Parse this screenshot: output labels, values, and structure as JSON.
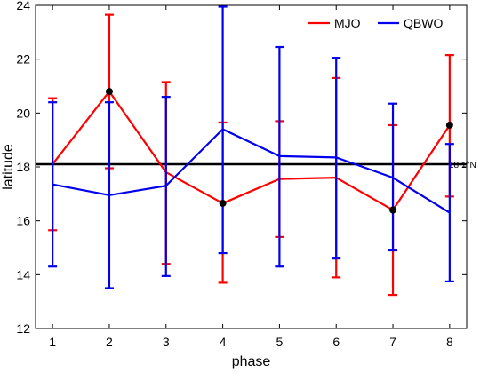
{
  "chart_data": {
    "type": "line",
    "title": "",
    "xlabel": "phase",
    "ylabel": "latitude",
    "x": [
      1,
      2,
      3,
      4,
      5,
      6,
      7,
      8
    ],
    "xlim": [
      0.7,
      8.3
    ],
    "ylim": [
      12,
      24
    ],
    "x_ticks": [
      "1",
      "2",
      "3",
      "4",
      "5",
      "6",
      "7",
      "8"
    ],
    "y_ticks": [
      "12",
      "14",
      "16",
      "18",
      "20",
      "22",
      "24"
    ],
    "grid": false,
    "legend_position": "top-right",
    "reference_line": {
      "y": 18.1,
      "label": "18.1°N",
      "color": "#000000"
    },
    "series": [
      {
        "name": "MJO",
        "color": "#ff0000",
        "values": [
          18.1,
          20.8,
          17.8,
          16.65,
          17.55,
          17.6,
          16.4,
          19.55
        ],
        "err_low": [
          15.65,
          17.95,
          14.4,
          13.7,
          15.4,
          13.9,
          13.25,
          16.9
        ],
        "err_high": [
          20.55,
          23.65,
          21.15,
          19.65,
          19.7,
          21.3,
          19.55,
          22.15
        ],
        "highlight_points": [
          2,
          4,
          7,
          8
        ]
      },
      {
        "name": "QBWO",
        "color": "#0000ee",
        "values": [
          17.35,
          16.95,
          17.3,
          19.4,
          18.4,
          18.35,
          17.6,
          16.3
        ],
        "err_low": [
          14.3,
          13.5,
          13.95,
          14.8,
          14.3,
          14.6,
          14.9,
          13.75
        ],
        "err_high": [
          20.4,
          20.4,
          20.6,
          23.95,
          22.45,
          22.05,
          20.35,
          18.85
        ]
      }
    ]
  }
}
